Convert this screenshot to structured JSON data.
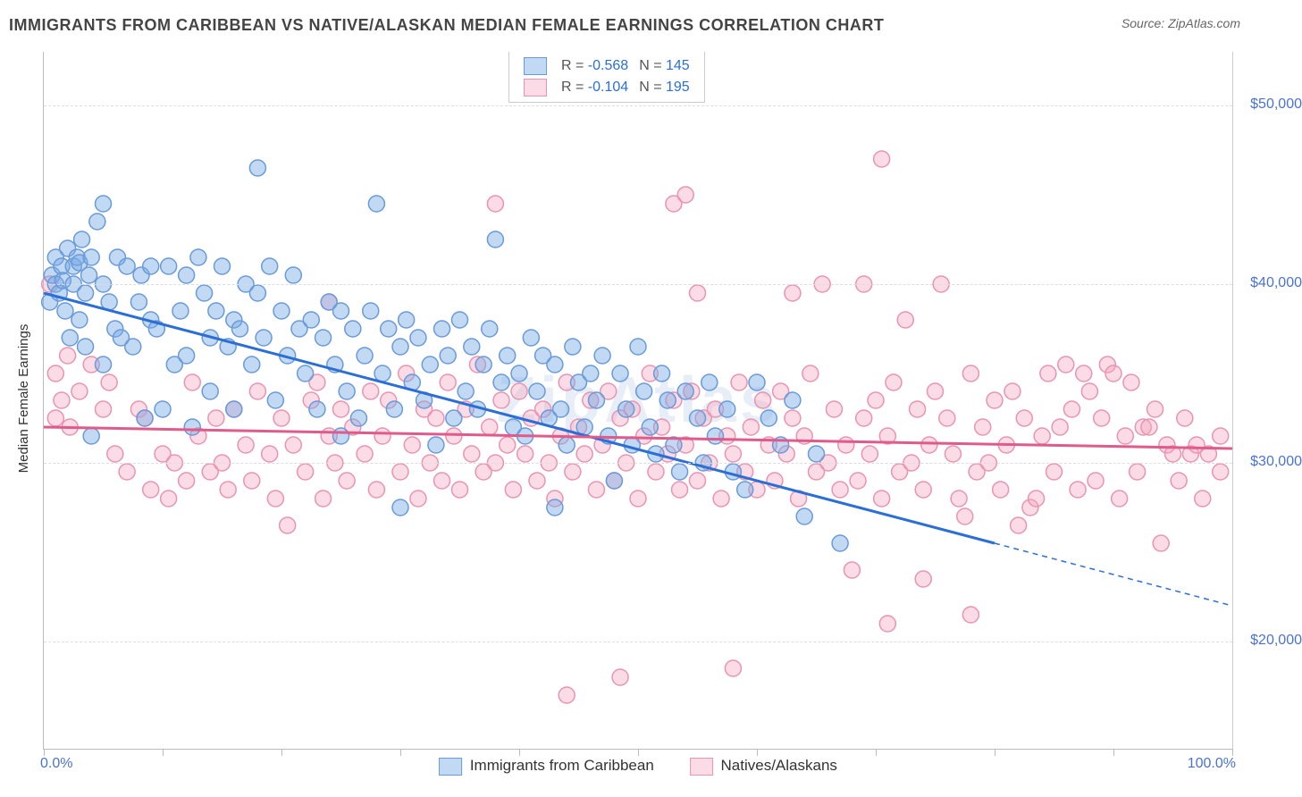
{
  "title": "IMMIGRANTS FROM CARIBBEAN VS NATIVE/ALASKAN MEDIAN FEMALE EARNINGS CORRELATION CHART",
  "source": "Source: ZipAtlas.com",
  "watermark": "ZipAtlas",
  "y_axis": {
    "label": "Median Female Earnings",
    "min": 14000,
    "max": 53000,
    "ticks": [
      20000,
      30000,
      40000,
      50000
    ],
    "tick_labels": [
      "$20,000",
      "$30,000",
      "$40,000",
      "$50,000"
    ],
    "tick_color": "#4a72d4",
    "grid_color": "#dddddd"
  },
  "x_axis": {
    "min": 0,
    "max": 100,
    "ticks": [
      0,
      10,
      20,
      30,
      40,
      50,
      60,
      70,
      80,
      90,
      100
    ],
    "end_labels": {
      "left": "0.0%",
      "right": "100.0%"
    },
    "tick_color": "#4a72d4"
  },
  "series": [
    {
      "name": "Immigrants from Caribbean",
      "fill": "rgba(120, 170, 230, 0.45)",
      "stroke": "#6a9ad8",
      "trend_stroke": "#2b6fd6",
      "trend_width": 3,
      "R": "-0.568",
      "N": "145",
      "trend": {
        "x1": 0,
        "y1": 39500,
        "x2_solid": 80,
        "y2_solid": 25500,
        "x2_dash": 100,
        "y2_dash": 22000
      },
      "points": [
        [
          0.5,
          39000
        ],
        [
          0.7,
          40500
        ],
        [
          1,
          40000
        ],
        [
          1,
          41500
        ],
        [
          1.3,
          39500
        ],
        [
          1.5,
          41000
        ],
        [
          1.6,
          40200
        ],
        [
          1.8,
          38500
        ],
        [
          2,
          42000
        ],
        [
          2.2,
          37000
        ],
        [
          2.5,
          41000
        ],
        [
          2.5,
          40000
        ],
        [
          2.8,
          41500
        ],
        [
          3,
          41200
        ],
        [
          3,
          38000
        ],
        [
          3.2,
          42500
        ],
        [
          3.5,
          36500
        ],
        [
          3.5,
          39500
        ],
        [
          3.8,
          40500
        ],
        [
          4,
          41500
        ],
        [
          4,
          31500
        ],
        [
          4.5,
          43500
        ],
        [
          5,
          44500
        ],
        [
          5,
          40000
        ],
        [
          5,
          35500
        ],
        [
          5.5,
          39000
        ],
        [
          6,
          37500
        ],
        [
          6.2,
          41500
        ],
        [
          6.5,
          37000
        ],
        [
          7,
          41000
        ],
        [
          7.5,
          36500
        ],
        [
          8,
          39000
        ],
        [
          8.2,
          40500
        ],
        [
          8.5,
          32500
        ],
        [
          9,
          41000
        ],
        [
          9,
          38000
        ],
        [
          9.5,
          37500
        ],
        [
          10,
          33000
        ],
        [
          10.5,
          41000
        ],
        [
          11,
          35500
        ],
        [
          11.5,
          38500
        ],
        [
          12,
          36000
        ],
        [
          12,
          40500
        ],
        [
          12.5,
          32000
        ],
        [
          13,
          41500
        ],
        [
          13.5,
          39500
        ],
        [
          14,
          37000
        ],
        [
          14,
          34000
        ],
        [
          14.5,
          38500
        ],
        [
          15,
          41000
        ],
        [
          15.5,
          36500
        ],
        [
          16,
          38000
        ],
        [
          16,
          33000
        ],
        [
          16.5,
          37500
        ],
        [
          17,
          40000
        ],
        [
          17.5,
          35500
        ],
        [
          18,
          39500
        ],
        [
          18,
          46500
        ],
        [
          18.5,
          37000
        ],
        [
          19,
          41000
        ],
        [
          19.5,
          33500
        ],
        [
          20,
          38500
        ],
        [
          20.5,
          36000
        ],
        [
          21,
          40500
        ],
        [
          21.5,
          37500
        ],
        [
          22,
          35000
        ],
        [
          22.5,
          38000
        ],
        [
          23,
          33000
        ],
        [
          23.5,
          37000
        ],
        [
          24,
          39000
        ],
        [
          24.5,
          35500
        ],
        [
          25,
          38500
        ],
        [
          25,
          31500
        ],
        [
          25.5,
          34000
        ],
        [
          26,
          37500
        ],
        [
          26.5,
          32500
        ],
        [
          27,
          36000
        ],
        [
          27.5,
          38500
        ],
        [
          28,
          44500
        ],
        [
          28.5,
          35000
        ],
        [
          29,
          37500
        ],
        [
          29.5,
          33000
        ],
        [
          30,
          36500
        ],
        [
          30,
          27500
        ],
        [
          30.5,
          38000
        ],
        [
          31,
          34500
        ],
        [
          31.5,
          37000
        ],
        [
          32,
          33500
        ],
        [
          32.5,
          35500
        ],
        [
          33,
          31000
        ],
        [
          33.5,
          37500
        ],
        [
          34,
          36000
        ],
        [
          34.5,
          32500
        ],
        [
          35,
          38000
        ],
        [
          35.5,
          34000
        ],
        [
          36,
          36500
        ],
        [
          36.5,
          33000
        ],
        [
          37,
          35500
        ],
        [
          37.5,
          37500
        ],
        [
          38,
          42500
        ],
        [
          38.5,
          34500
        ],
        [
          39,
          36000
        ],
        [
          39.5,
          32000
        ],
        [
          40,
          35000
        ],
        [
          40.5,
          31500
        ],
        [
          41,
          37000
        ],
        [
          41.5,
          34000
        ],
        [
          42,
          36000
        ],
        [
          42.5,
          32500
        ],
        [
          43,
          35500
        ],
        [
          43,
          27500
        ],
        [
          43.5,
          33000
        ],
        [
          44,
          31000
        ],
        [
          44.5,
          36500
        ],
        [
          45,
          34500
        ],
        [
          45.5,
          32000
        ],
        [
          46,
          35000
        ],
        [
          46.5,
          33500
        ],
        [
          47,
          36000
        ],
        [
          47.5,
          31500
        ],
        [
          48,
          29000
        ],
        [
          48.5,
          35000
        ],
        [
          49,
          33000
        ],
        [
          49.5,
          31000
        ],
        [
          50,
          36500
        ],
        [
          50.5,
          34000
        ],
        [
          51,
          32000
        ],
        [
          51.5,
          30500
        ],
        [
          52,
          35000
        ],
        [
          52.5,
          33500
        ],
        [
          53,
          31000
        ],
        [
          53.5,
          29500
        ],
        [
          54,
          34000
        ],
        [
          55,
          32500
        ],
        [
          55.5,
          30000
        ],
        [
          56,
          34500
        ],
        [
          56.5,
          31500
        ],
        [
          57.5,
          33000
        ],
        [
          58,
          29500
        ],
        [
          59,
          28500
        ],
        [
          60,
          34500
        ],
        [
          61,
          32500
        ],
        [
          62,
          31000
        ],
        [
          63,
          33500
        ],
        [
          64,
          27000
        ],
        [
          65,
          30500
        ],
        [
          67,
          25500
        ]
      ]
    },
    {
      "name": "Natives/Alaskans",
      "fill": "rgba(245, 165, 190, 0.40)",
      "stroke": "#e994b0",
      "trend_stroke": "#e05a8a",
      "trend_width": 3,
      "R": "-0.104",
      "N": "195",
      "trend": {
        "x1": 0,
        "y1": 32000,
        "x2_solid": 100,
        "y2_solid": 30800,
        "x2_dash": 100,
        "y2_dash": 30800
      },
      "points": [
        [
          0.5,
          40000
        ],
        [
          1,
          35000
        ],
        [
          1,
          32500
        ],
        [
          1.5,
          33500
        ],
        [
          2,
          36000
        ],
        [
          2.2,
          32000
        ],
        [
          3,
          34000
        ],
        [
          4,
          35500
        ],
        [
          5,
          33000
        ],
        [
          5.5,
          34500
        ],
        [
          6,
          30500
        ],
        [
          7,
          29500
        ],
        [
          8,
          33000
        ],
        [
          8.5,
          32500
        ],
        [
          9,
          28500
        ],
        [
          10,
          30500
        ],
        [
          10.5,
          28000
        ],
        [
          11,
          30000
        ],
        [
          12,
          29000
        ],
        [
          12.5,
          34500
        ],
        [
          13,
          31500
        ],
        [
          14,
          29500
        ],
        [
          14.5,
          32500
        ],
        [
          15,
          30000
        ],
        [
          15.5,
          28500
        ],
        [
          16,
          33000
        ],
        [
          17,
          31000
        ],
        [
          17.5,
          29000
        ],
        [
          18,
          34000
        ],
        [
          19,
          30500
        ],
        [
          19.5,
          28000
        ],
        [
          20,
          32500
        ],
        [
          20.5,
          26500
        ],
        [
          21,
          31000
        ],
        [
          22,
          29500
        ],
        [
          22.5,
          33500
        ],
        [
          23,
          34500
        ],
        [
          23.5,
          28000
        ],
        [
          24,
          39000
        ],
        [
          24,
          31500
        ],
        [
          24.5,
          30000
        ],
        [
          25,
          33000
        ],
        [
          25.5,
          29000
        ],
        [
          26,
          32000
        ],
        [
          27,
          30500
        ],
        [
          27.5,
          34000
        ],
        [
          28,
          28500
        ],
        [
          28.5,
          31500
        ],
        [
          29,
          33500
        ],
        [
          30,
          29500
        ],
        [
          30.5,
          35000
        ],
        [
          31,
          31000
        ],
        [
          31.5,
          28000
        ],
        [
          32,
          33000
        ],
        [
          32.5,
          30000
        ],
        [
          33,
          32500
        ],
        [
          33.5,
          29000
        ],
        [
          34,
          34500
        ],
        [
          34.5,
          31500
        ],
        [
          35,
          28500
        ],
        [
          35.5,
          33000
        ],
        [
          36,
          30500
        ],
        [
          36.5,
          35500
        ],
        [
          37,
          29500
        ],
        [
          37.5,
          32000
        ],
        [
          38,
          44500
        ],
        [
          38,
          30000
        ],
        [
          38.5,
          33500
        ],
        [
          39,
          31000
        ],
        [
          39.5,
          28500
        ],
        [
          40,
          34000
        ],
        [
          40.5,
          30500
        ],
        [
          41,
          32500
        ],
        [
          41.5,
          29000
        ],
        [
          42,
          33000
        ],
        [
          42.5,
          30000
        ],
        [
          43,
          28000
        ],
        [
          43.5,
          31500
        ],
        [
          44,
          34500
        ],
        [
          44.5,
          29500
        ],
        [
          44,
          17000
        ],
        [
          45,
          32000
        ],
        [
          45.5,
          30500
        ],
        [
          46,
          33500
        ],
        [
          46.5,
          28500
        ],
        [
          47,
          31000
        ],
        [
          47.5,
          34000
        ],
        [
          48,
          29000
        ],
        [
          48.5,
          32500
        ],
        [
          48.5,
          18000
        ],
        [
          49,
          30000
        ],
        [
          49.5,
          33000
        ],
        [
          50,
          28000
        ],
        [
          50.5,
          31500
        ],
        [
          51,
          35000
        ],
        [
          51.5,
          29500
        ],
        [
          52,
          32000
        ],
        [
          52.5,
          30500
        ],
        [
          53,
          33500
        ],
        [
          53,
          44500
        ],
        [
          53.5,
          28500
        ],
        [
          54,
          31000
        ],
        [
          54,
          45000
        ],
        [
          54.5,
          34000
        ],
        [
          55,
          39500
        ],
        [
          55,
          29000
        ],
        [
          55.5,
          32500
        ],
        [
          56,
          30000
        ],
        [
          56.5,
          33000
        ],
        [
          57,
          28000
        ],
        [
          57.5,
          31500
        ],
        [
          58,
          18500
        ],
        [
          58,
          30500
        ],
        [
          58.5,
          34500
        ],
        [
          59,
          29500
        ],
        [
          59.5,
          32000
        ],
        [
          60,
          28500
        ],
        [
          60.5,
          33500
        ],
        [
          61,
          31000
        ],
        [
          61.5,
          29000
        ],
        [
          62,
          34000
        ],
        [
          62.5,
          30500
        ],
        [
          63,
          39500
        ],
        [
          63,
          32500
        ],
        [
          63.5,
          28000
        ],
        [
          64,
          31500
        ],
        [
          64.5,
          35000
        ],
        [
          65,
          29500
        ],
        [
          65.5,
          40000
        ],
        [
          66,
          30000
        ],
        [
          66.5,
          33000
        ],
        [
          67,
          28500
        ],
        [
          67.5,
          31000
        ],
        [
          68,
          24000
        ],
        [
          68.5,
          29000
        ],
        [
          69,
          40000
        ],
        [
          69,
          32500
        ],
        [
          69.5,
          30500
        ],
        [
          70,
          33500
        ],
        [
          70.5,
          28000
        ],
        [
          70.5,
          47000
        ],
        [
          71,
          21000
        ],
        [
          71,
          31500
        ],
        [
          71.5,
          34500
        ],
        [
          72,
          29500
        ],
        [
          72.5,
          38000
        ],
        [
          73,
          30000
        ],
        [
          73.5,
          33000
        ],
        [
          74,
          28500
        ],
        [
          74,
          23500
        ],
        [
          74.5,
          31000
        ],
        [
          75,
          34000
        ],
        [
          75.5,
          40000
        ],
        [
          76,
          32500
        ],
        [
          76.5,
          30500
        ],
        [
          77,
          28000
        ],
        [
          77.5,
          27000
        ],
        [
          78,
          35000
        ],
        [
          78,
          21500
        ],
        [
          78.5,
          29500
        ],
        [
          79,
          32000
        ],
        [
          79.5,
          30000
        ],
        [
          80,
          33500
        ],
        [
          80.5,
          28500
        ],
        [
          81,
          31000
        ],
        [
          81.5,
          34000
        ],
        [
          82,
          26500
        ],
        [
          82.5,
          32500
        ],
        [
          83,
          27500
        ],
        [
          83.5,
          28000
        ],
        [
          84,
          31500
        ],
        [
          84.5,
          35000
        ],
        [
          85,
          29500
        ],
        [
          85.5,
          32000
        ],
        [
          86,
          35500
        ],
        [
          86.5,
          33000
        ],
        [
          87,
          28500
        ],
        [
          87.5,
          35000
        ],
        [
          88,
          34000
        ],
        [
          88.5,
          29000
        ],
        [
          89,
          32500
        ],
        [
          89.5,
          35500
        ],
        [
          90,
          35000
        ],
        [
          90.5,
          28000
        ],
        [
          91,
          31500
        ],
        [
          91.5,
          34500
        ],
        [
          92,
          29500
        ],
        [
          92.5,
          32000
        ],
        [
          93,
          32000
        ],
        [
          93.5,
          33000
        ],
        [
          94,
          25500
        ],
        [
          94.5,
          31000
        ],
        [
          95,
          30500
        ],
        [
          95.5,
          29000
        ],
        [
          96,
          32500
        ],
        [
          96.5,
          30500
        ],
        [
          97,
          31000
        ],
        [
          97.5,
          28000
        ],
        [
          98,
          30500
        ],
        [
          99,
          31500
        ],
        [
          99,
          29500
        ]
      ]
    }
  ],
  "legend_bottom": [
    {
      "label": "Immigrants from Caribbean",
      "swatch_fill": "rgba(120,170,230,0.45)",
      "swatch_stroke": "#6a9ad8"
    },
    {
      "label": "Natives/Alaskans",
      "swatch_fill": "rgba(245,165,190,0.40)",
      "swatch_stroke": "#e994b0"
    }
  ],
  "marker_radius": 9,
  "marker_stroke_width": 1.5,
  "background_color": "#ffffff"
}
